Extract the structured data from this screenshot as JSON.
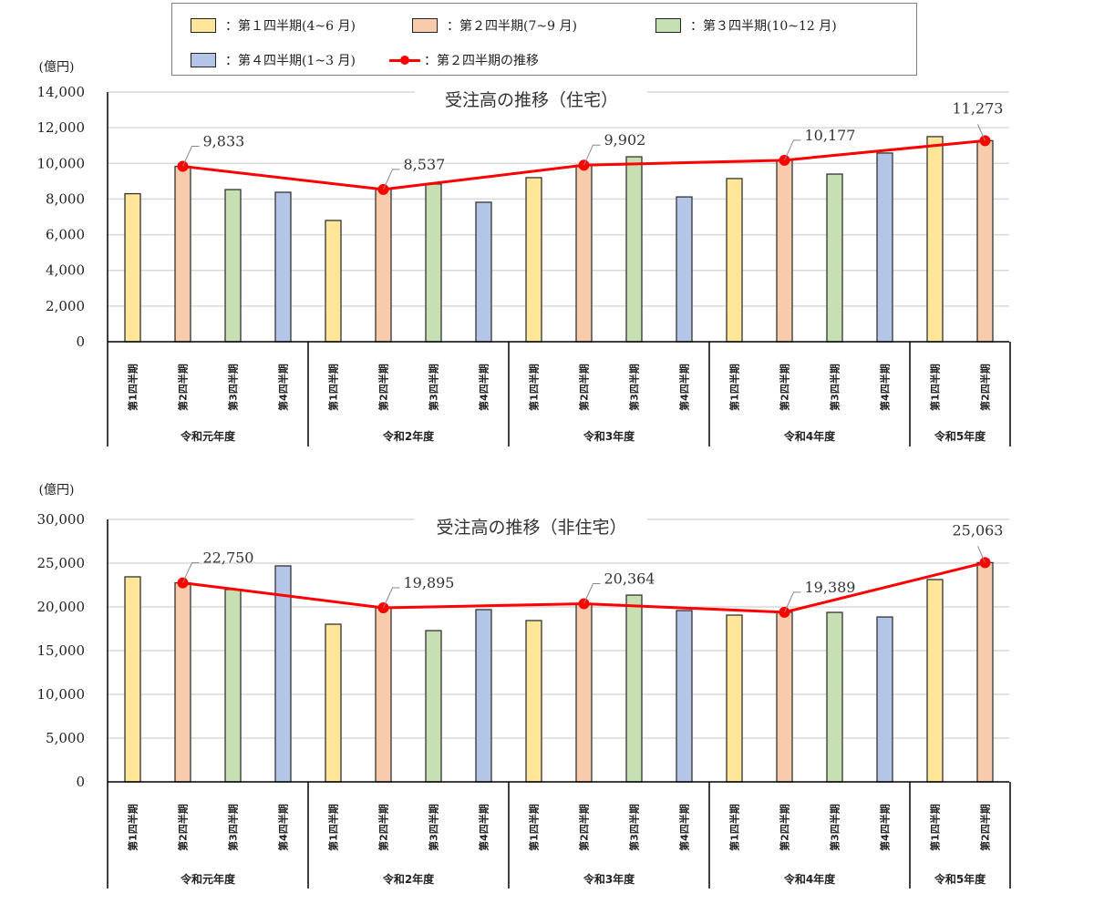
{
  "legend": {
    "q1": "：第１四半期(4~6 月)",
    "q2": "：第２四半期(7~9 月)",
    "q3": "：第３四半期(10~12 月)",
    "q4": "：第４四半期(1~3 月)",
    "line": "：第２四半期の推移"
  },
  "colors": {
    "q1": "#ffe699",
    "q2": "#f8cbad",
    "q3": "#c6e0b4",
    "q4": "#b4c6e7",
    "line": "#ff0000",
    "grid": "#d9d9d9"
  },
  "chart_data": [
    {
      "type": "bar",
      "title": "受注高の推移（住宅）",
      "ylabel": "(億円)",
      "ylim": [
        0,
        14000
      ],
      "yticks": [
        "0",
        "2,000",
        "4,000",
        "6,000",
        "8,000",
        "10,000",
        "12,000",
        "14,000"
      ],
      "ystep": 2000,
      "groups": [
        "令和元年度",
        "令和2年度",
        "令和3年度",
        "令和4年度",
        "令和5年度"
      ],
      "categories": [
        "第1四半期",
        "第2四半期",
        "第3四半期",
        "第4四半期",
        "第1四半期",
        "第2四半期",
        "第3四半期",
        "第4四半期",
        "第1四半期",
        "第2四半期",
        "第3四半期",
        "第4四半期",
        "第1四半期",
        "第2四半期",
        "第3四半期",
        "第4四半期",
        "第1四半期",
        "第2四半期"
      ],
      "quarter": [
        1,
        2,
        3,
        4,
        1,
        2,
        3,
        4,
        1,
        2,
        3,
        4,
        1,
        2,
        3,
        4,
        1,
        2
      ],
      "values": [
        8300,
        9833,
        8530,
        8380,
        6800,
        8537,
        8840,
        7820,
        9200,
        9902,
        10370,
        8120,
        9150,
        10177,
        9400,
        10580,
        11500,
        11273
      ],
      "line_series": {
        "name": "第２四半期の推移",
        "indices": [
          1,
          5,
          9,
          13,
          17
        ],
        "values": [
          9833,
          8537,
          9902,
          10177,
          11273
        ],
        "labels": [
          "9,833",
          "8,537",
          "9,902",
          "10,177",
          "11,273"
        ]
      }
    },
    {
      "type": "bar",
      "title": "受注高の推移（非住宅）",
      "ylabel": "(億円)",
      "ylim": [
        0,
        30000
      ],
      "yticks": [
        "0",
        "5,000",
        "10,000",
        "15,000",
        "20,000",
        "25,000",
        "30,000"
      ],
      "ystep": 5000,
      "groups": [
        "令和元年度",
        "令和2年度",
        "令和3年度",
        "令和4年度",
        "令和5年度"
      ],
      "categories": [
        "第1四半期",
        "第2四半期",
        "第3四半期",
        "第4四半期",
        "第1四半期",
        "第2四半期",
        "第3四半期",
        "第4四半期",
        "第1四半期",
        "第2四半期",
        "第3四半期",
        "第4四半期",
        "第1四半期",
        "第2四半期",
        "第3四半期",
        "第4四半期",
        "第1四半期",
        "第2四半期"
      ],
      "quarter": [
        1,
        2,
        3,
        4,
        1,
        2,
        3,
        4,
        1,
        2,
        3,
        4,
        1,
        2,
        3,
        4,
        1,
        2
      ],
      "values": [
        23440,
        22750,
        21980,
        24690,
        18020,
        19895,
        17290,
        19690,
        18440,
        20364,
        21350,
        19580,
        19060,
        19389,
        19375,
        18850,
        23125,
        25063
      ],
      "line_series": {
        "name": "第２四半期の推移",
        "indices": [
          1,
          5,
          9,
          13,
          17
        ],
        "values": [
          22750,
          19895,
          20364,
          19389,
          25063
        ],
        "labels": [
          "22,750",
          "19,895",
          "20,364",
          "19,389",
          "25,063"
        ]
      }
    }
  ]
}
